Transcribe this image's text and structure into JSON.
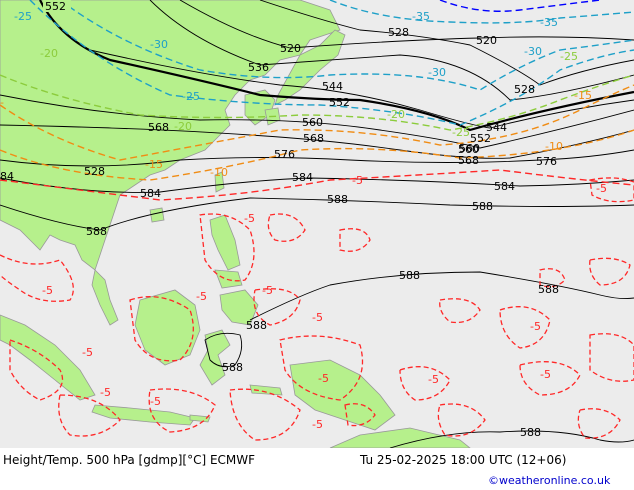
{
  "map": {
    "colors": {
      "ocean": "#ececec",
      "land": "#b6f08c",
      "coast": "#999999",
      "height_contour": "#000000",
      "temp_cold": "#1ea0c8",
      "temp_mid": "#8ccc3c",
      "temp_warm": "#f08c14",
      "temp_hot": "#ff2828",
      "temp_very_cold": "#0000ff"
    },
    "height_labels": [
      "552",
      "520",
      "528",
      "536",
      "520",
      "544",
      "552",
      "528",
      "560",
      "568",
      "560",
      "552",
      "544",
      "576",
      "568",
      "584",
      "576",
      "568",
      "560",
      "584",
      "584",
      "588",
      "588",
      "588",
      "588",
      "588",
      "588",
      "588",
      "588"
    ],
    "temp_labels": [
      "-25",
      "-30",
      "-35",
      "-35",
      "-30",
      "-30",
      "-25",
      "-25",
      "-20",
      "-25",
      "-20",
      "-20",
      "-15",
      "-15",
      "-10",
      "-10",
      "-5",
      "-5",
      "-5",
      "-5",
      "-5",
      "-5",
      "-5",
      "-5",
      "-5",
      "-5",
      "-5",
      "-5",
      "-5",
      "-5",
      "-5"
    ],
    "edge_labels": [
      "84",
      "-"
    ]
  },
  "footer": {
    "left": "Height/Temp. 500 hPa [gdmp][°C] ECMWF",
    "right": "Tu 25-02-2025 18:00 UTC (12+06)",
    "credit": "©weatheronline.co.uk"
  }
}
